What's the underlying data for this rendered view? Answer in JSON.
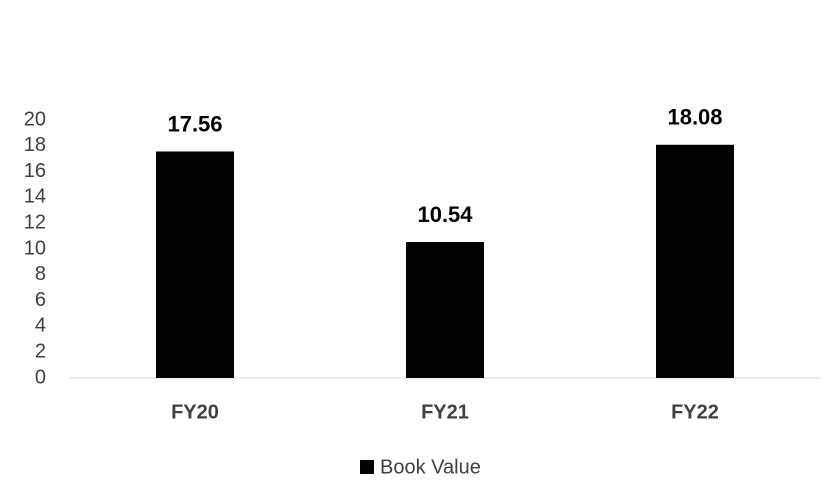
{
  "chart_data": {
    "type": "bar",
    "categories": [
      "FY20",
      "FY21",
      "FY22"
    ],
    "series": [
      {
        "name": "Book Value",
        "color": "#000000",
        "values": [
          17.56,
          10.54,
          18.08
        ]
      }
    ],
    "ylim": [
      0,
      20
    ],
    "yticks": [
      0,
      2,
      4,
      6,
      8,
      10,
      12,
      14,
      16,
      18,
      20
    ],
    "grid": false,
    "legend": "bottom"
  }
}
